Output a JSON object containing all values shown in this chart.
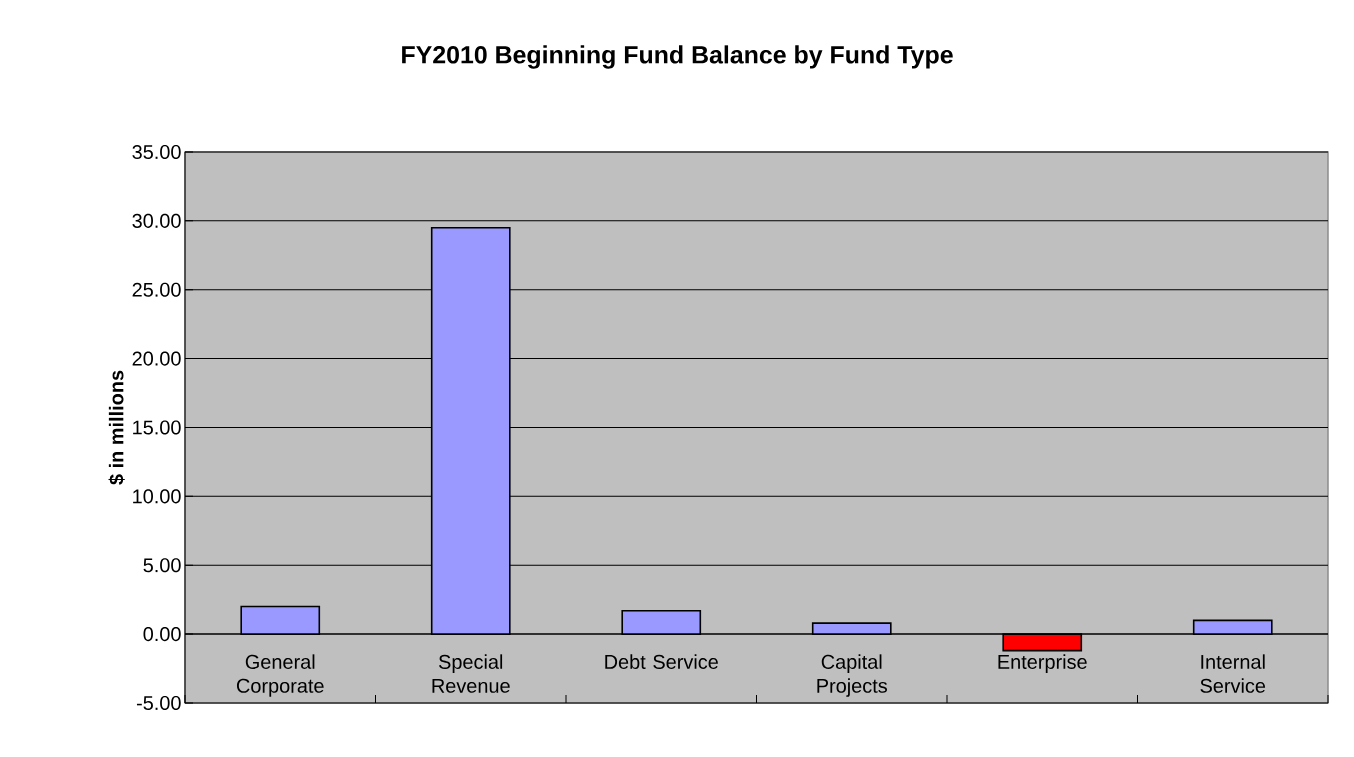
{
  "chart_data": {
    "type": "bar",
    "title": "FY2010 Beginning Fund Balance by Fund Type",
    "ylabel": "$ in millions",
    "categories": [
      "General Corporate",
      "Special Revenue",
      "Debt Service",
      "Capital Projects",
      "Enterprise",
      "Internal Service"
    ],
    "values": [
      2.0,
      29.5,
      1.7,
      0.8,
      -1.2,
      1.0
    ],
    "colors": [
      "#9999ff",
      "#9999ff",
      "#9999ff",
      "#9999ff",
      "#ff0000",
      "#9999ff"
    ],
    "ylim": [
      -5,
      35
    ],
    "yticks": [
      {
        "value": -5,
        "label": "-5.00"
      },
      {
        "value": 0,
        "label": "0.00"
      },
      {
        "value": 5,
        "label": "5.00"
      },
      {
        "value": 10,
        "label": "10.00"
      },
      {
        "value": 15,
        "label": "15.00"
      },
      {
        "value": 20,
        "label": "20.00"
      },
      {
        "value": 25,
        "label": "25.00"
      },
      {
        "value": 30,
        "label": "30.00"
      },
      {
        "value": 35,
        "label": "35.00"
      }
    ],
    "grid": "y"
  }
}
